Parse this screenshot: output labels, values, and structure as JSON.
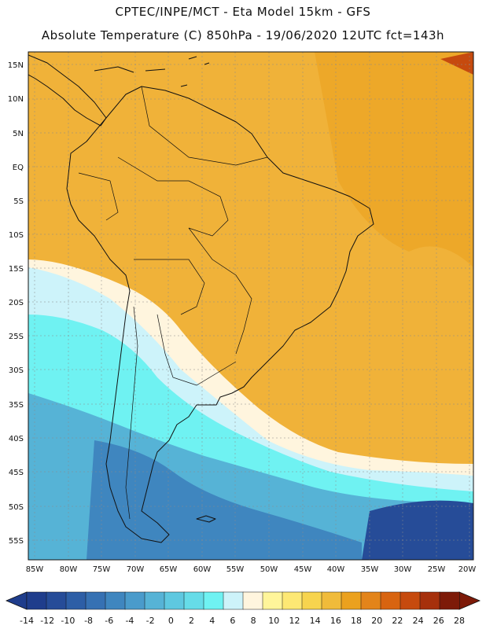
{
  "header": {
    "line1": "CPTEC/INPE/MCT -  Eta Model 15km - GFS",
    "line2": "Absolute Temperature (C) 850hPa - 19/06/2020 12UTC fct=143h"
  },
  "axes": {
    "lat_labels": [
      "15N",
      "10N",
      "5N",
      "EQ",
      "5S",
      "10S",
      "15S",
      "20S",
      "25S",
      "30S",
      "35S",
      "40S",
      "45S",
      "50S",
      "55S"
    ],
    "lon_labels": [
      "85W",
      "80W",
      "75W",
      "70W",
      "65W",
      "60W",
      "55W",
      "50W",
      "45W",
      "40W",
      "35W",
      "30W",
      "25W",
      "20W"
    ]
  },
  "colorbar": {
    "labels": [
      "-14",
      "-12",
      "-10",
      "-8",
      "-6",
      "-4",
      "-2",
      "0",
      "2",
      "4",
      "6",
      "8",
      "10",
      "12",
      "14",
      "16",
      "18",
      "20",
      "22",
      "24",
      "26",
      "28"
    ],
    "colors": [
      "#1f3d8c",
      "#264c98",
      "#2d5ea6",
      "#3671b3",
      "#3f86bf",
      "#4a9bcb",
      "#56b3d6",
      "#5ec8e0",
      "#66dce8",
      "#6ff2f2",
      "#cdf3fa",
      "#fff5de",
      "#fff59a",
      "#fde874",
      "#f7d44e",
      "#f0bb3a",
      "#eba11e",
      "#e3841a",
      "#d86410",
      "#c64a0e",
      "#a6300c",
      "#7d1a08"
    ]
  },
  "map": {
    "ocean_color": "#f3a62a",
    "land_color": "#e89b1c"
  }
}
